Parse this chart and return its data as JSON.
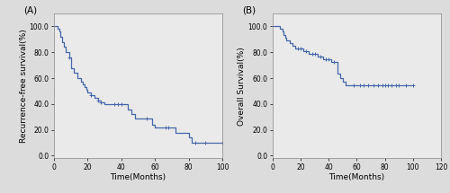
{
  "panel_A": {
    "label": "(A)",
    "ylabel": "Recurrence-free survival(%)",
    "xlabel": "Time(Months)",
    "xlim": [
      0,
      100
    ],
    "ylim": [
      -2.0,
      110.0
    ],
    "yticks": [
      0.0,
      20.0,
      40.0,
      60.0,
      80.0,
      100.0
    ],
    "xticks": [
      0,
      20,
      40,
      60,
      80,
      100
    ],
    "curve_color": "#4466aa",
    "steps": [
      [
        0,
        100.0
      ],
      [
        2,
        98.0
      ],
      [
        3,
        96.0
      ],
      [
        4,
        92.0
      ],
      [
        5,
        88.0
      ],
      [
        6,
        84.0
      ],
      [
        7,
        80.0
      ],
      [
        9,
        76.0
      ],
      [
        10,
        68.0
      ],
      [
        12,
        64.0
      ],
      [
        14,
        60.0
      ],
      [
        16,
        57.0
      ],
      [
        17,
        55.0
      ],
      [
        18,
        53.0
      ],
      [
        19,
        51.0
      ],
      [
        20,
        49.0
      ],
      [
        22,
        47.0
      ],
      [
        24,
        45.0
      ],
      [
        26,
        43.0
      ],
      [
        28,
        41.5
      ],
      [
        30,
        40.0
      ],
      [
        36,
        40.0
      ],
      [
        38,
        40.0
      ],
      [
        40,
        40.0
      ],
      [
        44,
        36.0
      ],
      [
        46,
        32.0
      ],
      [
        48,
        28.5
      ],
      [
        55,
        28.5
      ],
      [
        58,
        24.0
      ],
      [
        60,
        22.0
      ],
      [
        66,
        22.0
      ],
      [
        68,
        22.0
      ],
      [
        72,
        17.5
      ],
      [
        80,
        14.0
      ],
      [
        82,
        10.0
      ],
      [
        84,
        10.0
      ],
      [
        90,
        10.0
      ],
      [
        100,
        10.0
      ]
    ],
    "censors": [
      [
        9,
        76.0
      ],
      [
        22,
        47.0
      ],
      [
        26,
        43.0
      ],
      [
        28,
        41.5
      ],
      [
        36,
        40.0
      ],
      [
        38,
        40.0
      ],
      [
        40,
        40.0
      ],
      [
        55,
        28.5
      ],
      [
        66,
        22.0
      ],
      [
        68,
        22.0
      ],
      [
        84,
        10.0
      ],
      [
        90,
        10.0
      ],
      [
        100,
        10.0
      ]
    ]
  },
  "panel_B": {
    "label": "(B)",
    "ylabel": "Overall Survival(%)",
    "xlabel": "Time(Months)",
    "xlim": [
      0,
      120
    ],
    "ylim": [
      -2.0,
      110.0
    ],
    "yticks": [
      0.0,
      20.0,
      40.0,
      60.0,
      80.0,
      100.0
    ],
    "xticks": [
      0,
      20,
      40,
      60,
      80,
      100,
      120
    ],
    "curve_color": "#4466aa",
    "steps": [
      [
        0,
        100.0
      ],
      [
        4,
        100.0
      ],
      [
        5,
        97.9
      ],
      [
        7,
        95.8
      ],
      [
        8,
        93.7
      ],
      [
        9,
        91.6
      ],
      [
        10,
        89.5
      ],
      [
        12,
        87.4
      ],
      [
        14,
        85.3
      ],
      [
        16,
        83.2
      ],
      [
        18,
        83.2
      ],
      [
        20,
        83.2
      ],
      [
        22,
        81.0
      ],
      [
        24,
        81.0
      ],
      [
        26,
        78.9
      ],
      [
        28,
        78.9
      ],
      [
        30,
        78.9
      ],
      [
        32,
        76.8
      ],
      [
        34,
        76.8
      ],
      [
        36,
        74.7
      ],
      [
        38,
        74.7
      ],
      [
        40,
        74.7
      ],
      [
        42,
        72.6
      ],
      [
        44,
        72.6
      ],
      [
        46,
        63.2
      ],
      [
        48,
        60.0
      ],
      [
        50,
        57.0
      ],
      [
        52,
        54.3
      ],
      [
        58,
        54.3
      ],
      [
        62,
        54.3
      ],
      [
        65,
        54.3
      ],
      [
        68,
        54.3
      ],
      [
        72,
        54.3
      ],
      [
        75,
        54.3
      ],
      [
        78,
        54.3
      ],
      [
        80,
        54.3
      ],
      [
        82,
        54.3
      ],
      [
        85,
        54.3
      ],
      [
        88,
        54.3
      ],
      [
        90,
        54.3
      ],
      [
        95,
        54.3
      ],
      [
        100,
        54.3
      ]
    ],
    "censors": [
      [
        18,
        83.2
      ],
      [
        20,
        83.2
      ],
      [
        24,
        81.0
      ],
      [
        28,
        78.9
      ],
      [
        30,
        78.9
      ],
      [
        34,
        76.8
      ],
      [
        38,
        74.7
      ],
      [
        40,
        74.7
      ],
      [
        44,
        72.6
      ],
      [
        58,
        54.3
      ],
      [
        62,
        54.3
      ],
      [
        65,
        54.3
      ],
      [
        68,
        54.3
      ],
      [
        72,
        54.3
      ],
      [
        75,
        54.3
      ],
      [
        78,
        54.3
      ],
      [
        80,
        54.3
      ],
      [
        82,
        54.3
      ],
      [
        85,
        54.3
      ],
      [
        88,
        54.3
      ],
      [
        90,
        54.3
      ],
      [
        95,
        54.3
      ],
      [
        100,
        54.3
      ]
    ]
  },
  "fig_bg_color": "#dcdcdc",
  "plot_bg_color": "#eaeaea",
  "line_width": 0.9,
  "tick_fontsize": 5.5,
  "label_fontsize": 6.5,
  "panel_label_fontsize": 7.5
}
